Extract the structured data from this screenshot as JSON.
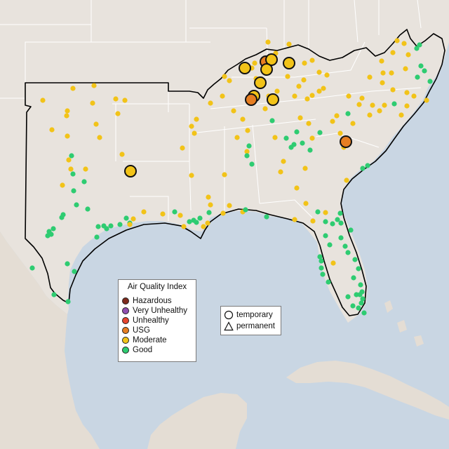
{
  "map": {
    "colors": {
      "water": "#c9d6e3",
      "land": "#e8e3dd",
      "state_border": "#ffffff",
      "region_outline": "#000000"
    }
  },
  "aqi_legend": {
    "title": "Air Quality Index",
    "categories": [
      {
        "label": "Hazardous",
        "color": "#7e2b1e"
      },
      {
        "label": "Very Unhealthy",
        "color": "#8f4fb0"
      },
      {
        "label": "Unhealthy",
        "color": "#e5452f"
      },
      {
        "label": "USG",
        "color": "#e67e22"
      },
      {
        "label": "Moderate",
        "color": "#f2c318"
      },
      {
        "label": "Good",
        "color": "#2ecc71"
      }
    ]
  },
  "type_legend": {
    "items": [
      {
        "label": "temporary",
        "icon": "circle-icon"
      },
      {
        "label": "permanent",
        "icon": "triangle-icon"
      }
    ]
  }
}
